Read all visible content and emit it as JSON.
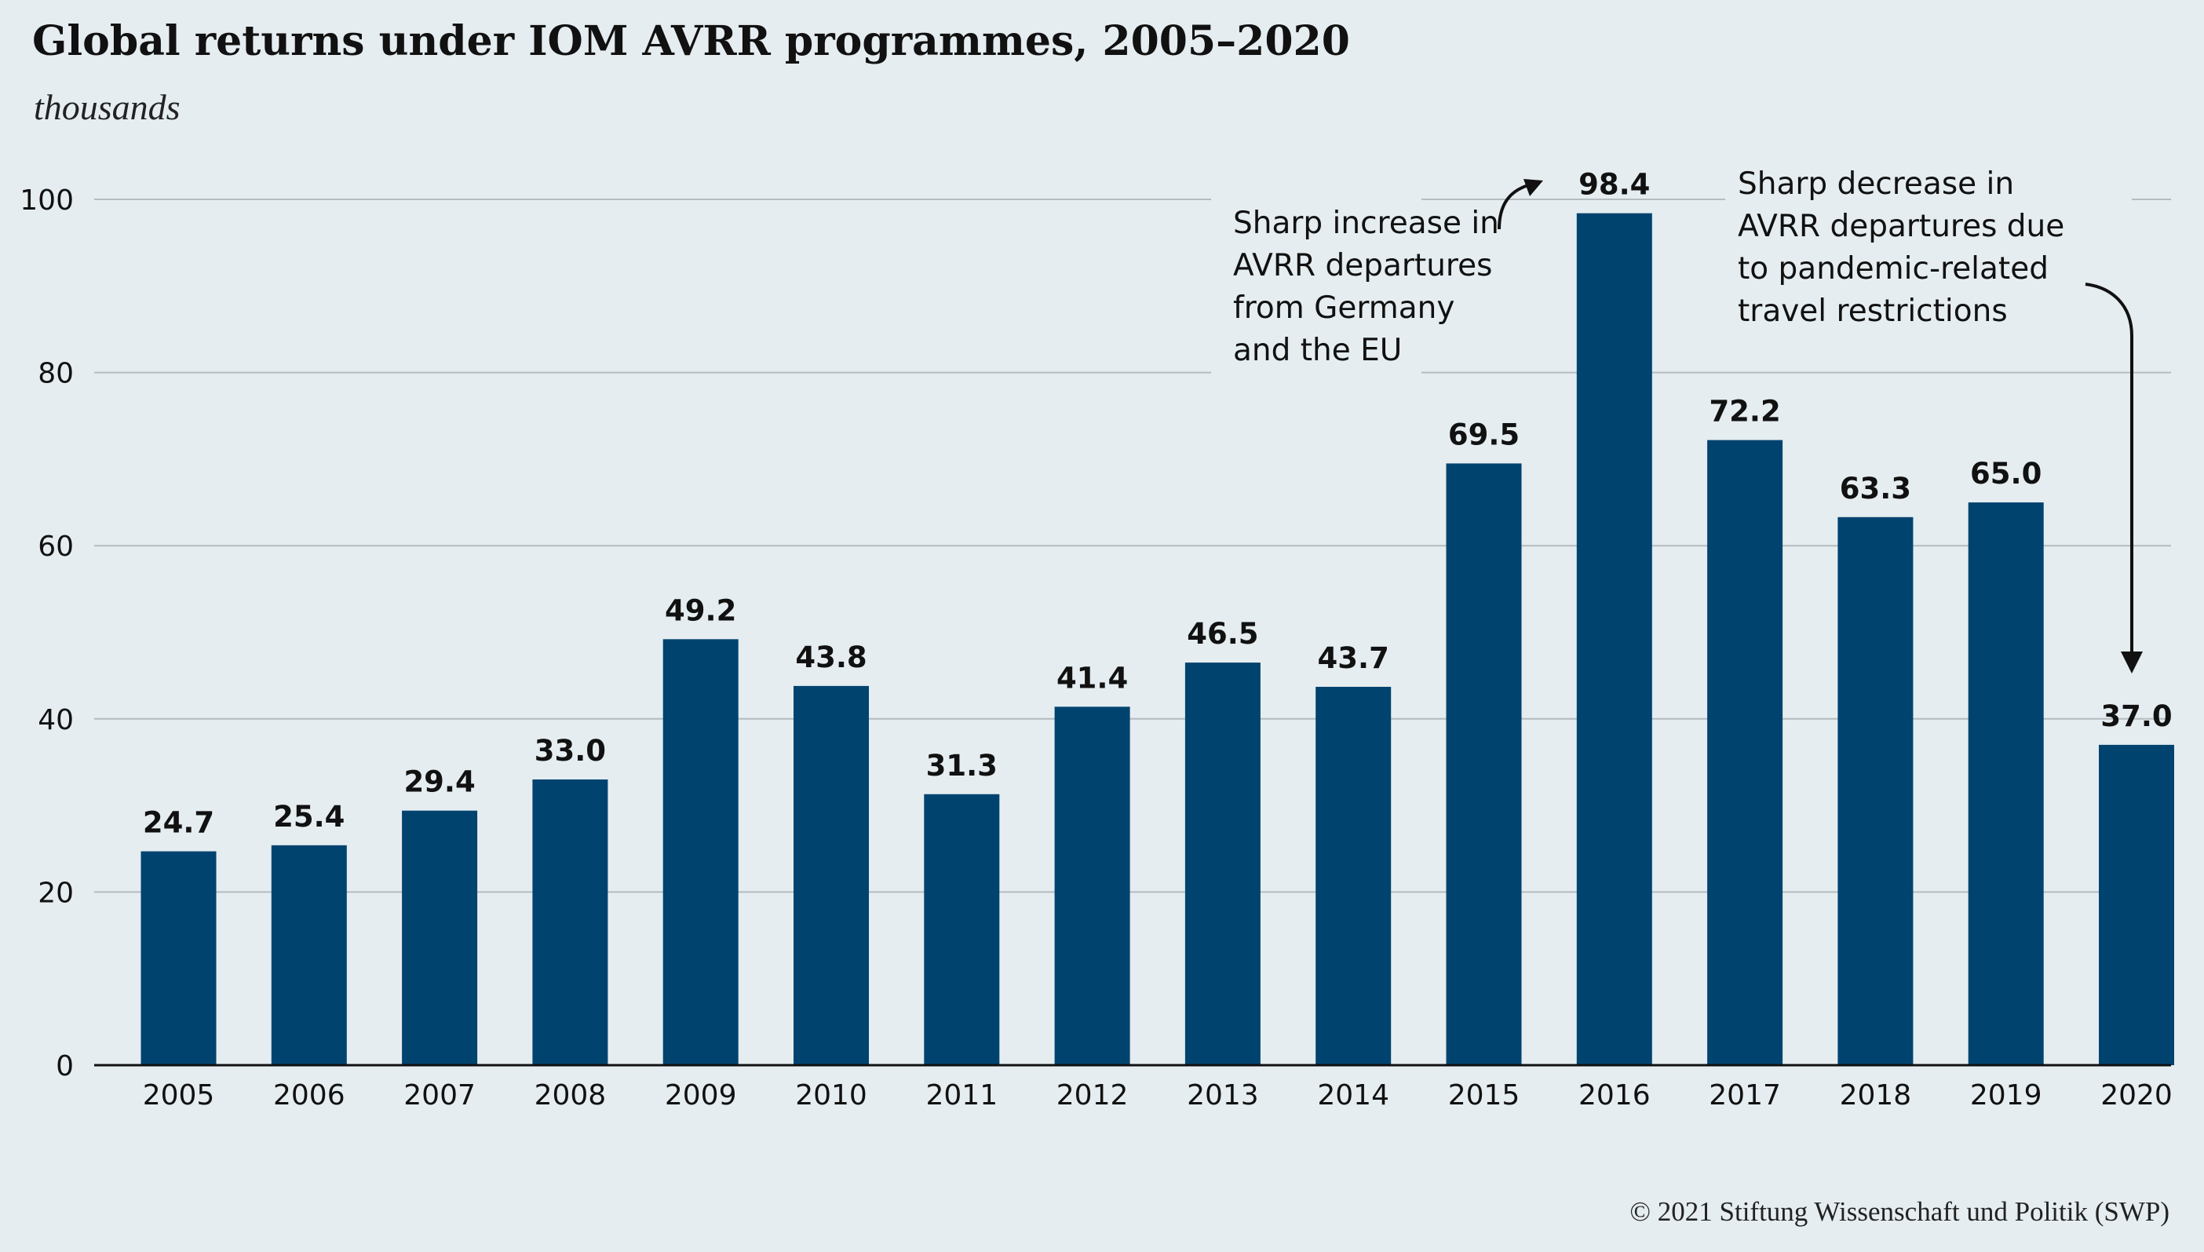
{
  "chart_data": {
    "type": "bar",
    "title": "Global returns under IOM AVRR programmes, 2005–2020",
    "subtitle": "thousands",
    "xlabel": "",
    "ylabel": "",
    "ylim": [
      0,
      100
    ],
    "yticks": [
      0,
      20,
      40,
      60,
      80,
      100
    ],
    "grid": true,
    "categories": [
      "2005",
      "2006",
      "2007",
      "2008",
      "2009",
      "2010",
      "2011",
      "2012",
      "2013",
      "2014",
      "2015",
      "2016",
      "2017",
      "2018",
      "2019",
      "2020"
    ],
    "values": [
      24.7,
      25.4,
      29.4,
      33.0,
      49.2,
      43.8,
      31.3,
      41.4,
      46.5,
      43.7,
      69.5,
      98.4,
      72.2,
      63.3,
      65.0,
      37.0
    ],
    "value_labels": [
      "24.7",
      "25.4",
      "29.4",
      "33.0",
      "49.2",
      "43.8",
      "31.3",
      "41.4",
      "46.5",
      "43.7",
      "69.5",
      "98.4",
      "72.2",
      "63.3",
      "65.0",
      "37.0"
    ],
    "bar_color": "#00436f",
    "annotations": [
      {
        "target": "2016",
        "lines": [
          "Sharp increase in",
          "AVRR departures",
          "from Germany",
          "and the EU"
        ]
      },
      {
        "target": "2020",
        "lines": [
          "Sharp decrease in",
          "AVRR departures due",
          "to pandemic-related",
          "travel restrictions"
        ]
      }
    ]
  },
  "credit": "© 2021 Stiftung Wissenschaft und Politik (SWP)",
  "colors": {
    "background": "#e5edf0",
    "bar": "#00436f",
    "gridline": "#b4bcc0",
    "axis": "#111111"
  }
}
